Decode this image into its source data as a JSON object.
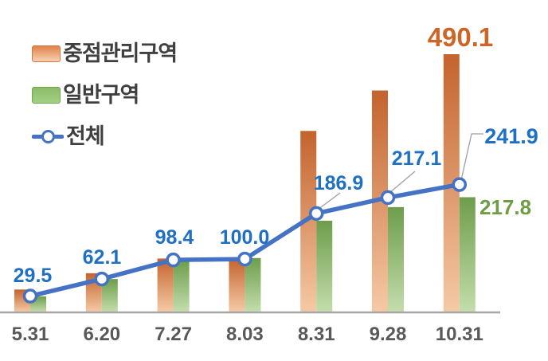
{
  "legend": {
    "items": [
      {
        "label": "중점관리구역",
        "swatch": "orange-gradient-swatch"
      },
      {
        "label": "일반구역",
        "swatch": "green-swatch"
      },
      {
        "label": "전체",
        "swatch": "blue-line-marker-icon"
      }
    ]
  },
  "chart_data": {
    "type": "bar",
    "subtype": "grouped bars with overlaid line series (combo chart)",
    "categories": [
      "5.31",
      "6.20",
      "7.27",
      "8.03",
      "8.31",
      "9.28",
      "10.31"
    ],
    "series": [
      {
        "name": "중점관리구역",
        "type": "bar",
        "values": [
          42,
          73,
          101,
          100,
          344,
          421,
          490.1
        ],
        "note": "only final value labeled on chart; others estimated from bar heights",
        "end_label": "490.1",
        "end_label_color": "#cc6627",
        "color_top": "#c4632d",
        "color_bottom": "#f5c9a5"
      },
      {
        "name": "일반구역",
        "type": "bar",
        "values": [
          29,
          62,
          97,
          102,
          173,
          199,
          217.8
        ],
        "note": "only final value labeled on chart; others estimated from bar heights",
        "end_label": "217.8",
        "end_label_color": "#6f9d44",
        "color_top": "#6d9d4b",
        "color_bottom": "#c3ddac"
      },
      {
        "name": "전체",
        "type": "line",
        "values": [
          29.5,
          62.1,
          98.4,
          100.0,
          186.9,
          217.1,
          241.9
        ],
        "point_labels": [
          "29.5",
          "62.1",
          "98.4",
          "100.0",
          "186.9",
          "217.1",
          "241.9"
        ],
        "label_color": "#1d70c4",
        "color": "#4472c4",
        "marker": "open-circle-white-fill"
      }
    ],
    "title": "",
    "xlabel": "",
    "ylabel": "",
    "ylim": [
      0,
      530
    ],
    "grid": false,
    "legend_position": "top-left",
    "axis_line_color": "#a6a6a6",
    "category_label_color": "#595959"
  }
}
